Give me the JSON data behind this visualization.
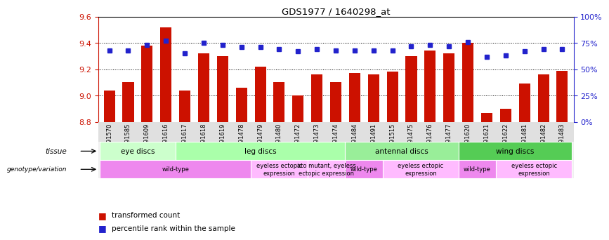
{
  "title": "GDS1977 / 1640298_at",
  "samples": [
    "GSM91570",
    "GSM91585",
    "GSM91609",
    "GSM91616",
    "GSM91617",
    "GSM91618",
    "GSM91619",
    "GSM91478",
    "GSM91479",
    "GSM91480",
    "GSM91472",
    "GSM91473",
    "GSM91474",
    "GSM91484",
    "GSM91491",
    "GSM91515",
    "GSM91475",
    "GSM91476",
    "GSM91477",
    "GSM91620",
    "GSM91621",
    "GSM91622",
    "GSM91481",
    "GSM91482",
    "GSM91483"
  ],
  "transformed_count": [
    9.04,
    9.1,
    9.38,
    9.52,
    9.04,
    9.32,
    9.3,
    9.06,
    9.22,
    9.1,
    9.0,
    9.16,
    9.1,
    9.17,
    9.16,
    9.18,
    9.3,
    9.34,
    9.32,
    9.4,
    8.87,
    8.9,
    9.09,
    9.16,
    9.19
  ],
  "percentile_rank": [
    68,
    68,
    73,
    77,
    65,
    75,
    73,
    71,
    71,
    69,
    67,
    69,
    68,
    68,
    68,
    68,
    72,
    73,
    72,
    76,
    62,
    63,
    67,
    69,
    69
  ],
  "ylim_left": [
    8.8,
    9.6
  ],
  "ylim_right": [
    0,
    100
  ],
  "yticks_left": [
    8.8,
    9.0,
    9.2,
    9.4,
    9.6
  ],
  "yticks_right": [
    0,
    25,
    50,
    75,
    100
  ],
  "ytick_labels_right": [
    "0%",
    "25%",
    "50%",
    "75%",
    "100%"
  ],
  "bar_color": "#cc1100",
  "dot_color": "#2222cc",
  "tissue_groups": [
    {
      "label": "eye discs",
      "start": 0,
      "end": 4,
      "color": "#ccffcc"
    },
    {
      "label": "leg discs",
      "start": 4,
      "end": 13,
      "color": "#aaffaa"
    },
    {
      "label": "antennal discs",
      "start": 13,
      "end": 19,
      "color": "#99ee99"
    },
    {
      "label": "wing discs",
      "start": 19,
      "end": 25,
      "color": "#55cc55"
    }
  ],
  "genotype_groups": [
    {
      "label": "wild-type",
      "start": 0,
      "end": 8,
      "color": "#ee88ee"
    },
    {
      "label": "eyeless ectopic\nexpression",
      "start": 8,
      "end": 11,
      "color": "#ffbbff"
    },
    {
      "label": "ato mutant, eyeless\nectopic expression",
      "start": 11,
      "end": 13,
      "color": "#ffbbff"
    },
    {
      "label": "wild-type",
      "start": 13,
      "end": 15,
      "color": "#ee88ee"
    },
    {
      "label": "eyeless ectopic\nexpression",
      "start": 15,
      "end": 19,
      "color": "#ffbbff"
    },
    {
      "label": "wild-type",
      "start": 19,
      "end": 21,
      "color": "#ee88ee"
    },
    {
      "label": "eyeless ectopic\nexpression",
      "start": 21,
      "end": 25,
      "color": "#ffbbff"
    }
  ],
  "legend_items": [
    {
      "label": "transformed count",
      "color": "#cc1100"
    },
    {
      "label": "percentile rank within the sample",
      "color": "#2222cc"
    }
  ],
  "grid_color": "black",
  "tick_label_color_left": "#cc1100",
  "tick_label_color_right": "#2222cc",
  "bg_color_plot": "#ffffff",
  "bg_color_fig": "#ffffff"
}
